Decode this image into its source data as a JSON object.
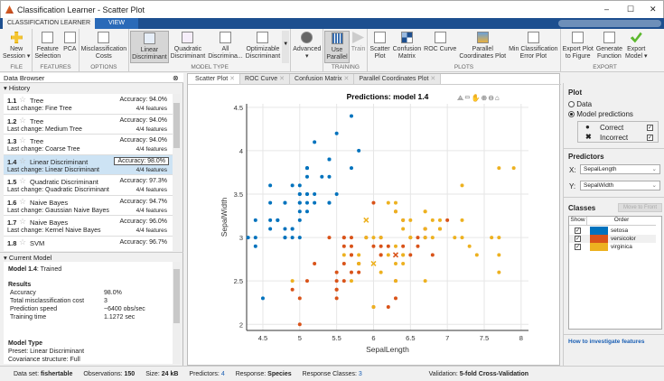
{
  "window": {
    "title": "Classification Learner - Scatter Plot",
    "min": "–",
    "max": "☐",
    "close": "✕"
  },
  "ribbon_tabs": [
    {
      "label": "CLASSIFICATION LEARNER"
    },
    {
      "label": "VIEW"
    }
  ],
  "toolstrip": {
    "buttons": [
      {
        "label": "New\nSession ▾"
      },
      {
        "label": "Feature\nSelection"
      },
      {
        "label": "PCA"
      },
      {
        "label": "Misclassification\nCosts"
      },
      {
        "label": "Linear\nDiscriminant"
      },
      {
        "label": "Quadratic\nDiscriminant"
      },
      {
        "label": "All\nDiscrimina..."
      },
      {
        "label": "Optimizable\nDiscriminant"
      },
      {
        "label": "Advanced\n▾"
      },
      {
        "label": "Use\nParallel"
      },
      {
        "label": "Train"
      },
      {
        "label": "Scatter\nPlot"
      },
      {
        "label": "Confusion\nMatrix"
      },
      {
        "label": "ROC Curve"
      },
      {
        "label": "Parallel\nCoordinates Plot"
      },
      {
        "label": "Min Classification\nError Plot"
      },
      {
        "label": "Export Plot\nto Figure"
      },
      {
        "label": "Generate\nFunction"
      },
      {
        "label": "Export\nModel ▾"
      }
    ],
    "sections": [
      "FILE",
      "FEATURES",
      "OPTIONS",
      "MODEL TYPE",
      "TRAINING",
      "PLOTS",
      "EXPORT"
    ]
  },
  "data_browser": {
    "title": "Data Browser",
    "history_label": "History",
    "current_model_label": "Current Model",
    "history": [
      {
        "id": "1.1",
        "name": "Tree",
        "accuracy": "Accuracy:  94.0%",
        "last_change": "Last change:  Fine Tree",
        "features": "4/4 features"
      },
      {
        "id": "1.2",
        "name": "Tree",
        "accuracy": "Accuracy:  94.0%",
        "last_change": "Last change:  Medium Tree",
        "features": "4/4 features"
      },
      {
        "id": "1.3",
        "name": "Tree",
        "accuracy": "Accuracy:  94.0%",
        "last_change": "Last change:  Coarse Tree",
        "features": "4/4 features"
      },
      {
        "id": "1.4",
        "name": "Linear Discriminant",
        "accuracy": "Accuracy:  98.0%",
        "last_change": "Last change:  Linear Discriminant",
        "features": "4/4 features"
      },
      {
        "id": "1.5",
        "name": "Quadratic Discriminant",
        "accuracy": "Accuracy:  97.3%",
        "last_change": "Last change:  Quadratic Discriminant",
        "features": "4/4 features"
      },
      {
        "id": "1.6",
        "name": "Naive Bayes",
        "accuracy": "Accuracy:  94.7%",
        "last_change": "Last change:  Gaussian Naive Bayes",
        "features": "4/4 features"
      },
      {
        "id": "1.7",
        "name": "Naive Bayes",
        "accuracy": "Accuracy:  96.0%",
        "last_change": "Last change:  Kernel Naive Bayes",
        "features": "4/4 features"
      },
      {
        "id": "1.8",
        "name": "SVM",
        "accuracy": "Accuracy:  96.7%",
        "last_change": "",
        "features": ""
      }
    ],
    "current_model": {
      "model": "Model 1.4",
      "status": ": Trained",
      "results_label": "Results",
      "results": [
        [
          "Accuracy",
          "98.0%"
        ],
        [
          "Total misclassification cost",
          "3"
        ],
        [
          "Prediction speed",
          "~6400 obs/sec"
        ],
        [
          "Training time",
          "1.1272 sec"
        ]
      ],
      "model_type_label": "Model Type",
      "preset": "Preset: Linear Discriminant",
      "covariance": "Covariance structure: Full"
    }
  },
  "doc_tabs": [
    {
      "label": "Scatter Plot"
    },
    {
      "label": "ROC Curve"
    },
    {
      "label": "Confusion Matrix"
    },
    {
      "label": "Parallel Coordinates Plot"
    }
  ],
  "right_panel": {
    "plot_label": "Plot",
    "data_option": "Data",
    "model_predictions_option": "Model predictions",
    "selected": "Model predictions",
    "correct_label": "Correct",
    "incorrect_label": "Incorrect",
    "correct_checked": true,
    "incorrect_checked": true,
    "predictors_label": "Predictors",
    "x_label": "X:",
    "x_value": "SepalLength",
    "y_label": "Y:",
    "y_value": "SepalWidth",
    "classes_label": "Classes",
    "move_to_front": "Move to Front",
    "show_header": "Show",
    "order_header": "Order",
    "classes": [
      {
        "name": "setosa",
        "color": "#0072bd",
        "checked": true
      },
      {
        "name": "versicolor",
        "color": "#d95319",
        "checked": true
      },
      {
        "name": "virginica",
        "color": "#edb120",
        "checked": true
      }
    ],
    "help_link": "How to investigate features"
  },
  "status": {
    "dataset_label": "Data set:",
    "dataset": "fishertable",
    "obs_label": "Observations:",
    "obs": "150",
    "size_label": "Size:",
    "size": "24 kB",
    "pred_label": "Predictors:",
    "pred": "4",
    "resp_label": "Response:",
    "resp": "Species",
    "classes_label": "Response Classes:",
    "classes": "3",
    "val_label": "Validation:",
    "val": "5-fold Cross-Validation"
  },
  "chart_data": {
    "type": "scatter",
    "title": "Predictions: model 1.4",
    "xlabel": "SepalLength",
    "ylabel": "SepalWidth",
    "xlim": [
      4.28,
      8.1
    ],
    "ylim": [
      1.93,
      4.54
    ],
    "xticks": [
      4.5,
      5,
      5.5,
      6,
      6.5,
      7,
      7.5,
      8
    ],
    "yticks": [
      2,
      2.5,
      3,
      3.5,
      4,
      4.5
    ],
    "grid": true,
    "series": [
      {
        "name": "setosa",
        "color": "#0072bd",
        "correct": [
          [
            5.1,
            3.5
          ],
          [
            4.9,
            3.0
          ],
          [
            4.7,
            3.2
          ],
          [
            4.6,
            3.1
          ],
          [
            5.0,
            3.6
          ],
          [
            5.4,
            3.9
          ],
          [
            4.6,
            3.4
          ],
          [
            5.0,
            3.4
          ],
          [
            4.4,
            2.9
          ],
          [
            4.9,
            3.1
          ],
          [
            5.4,
            3.7
          ],
          [
            4.8,
            3.4
          ],
          [
            4.8,
            3.0
          ],
          [
            4.3,
            3.0
          ],
          [
            5.8,
            4.0
          ],
          [
            5.7,
            4.4
          ],
          [
            5.4,
            3.9
          ],
          [
            5.1,
            3.5
          ],
          [
            5.7,
            3.8
          ],
          [
            5.1,
            3.8
          ],
          [
            5.4,
            3.4
          ],
          [
            5.1,
            3.7
          ],
          [
            4.6,
            3.6
          ],
          [
            5.1,
            3.3
          ],
          [
            4.8,
            3.4
          ],
          [
            5.0,
            3.0
          ],
          [
            5.0,
            3.4
          ],
          [
            5.2,
            3.5
          ],
          [
            5.2,
            3.4
          ],
          [
            4.7,
            3.2
          ],
          [
            4.8,
            3.1
          ],
          [
            5.4,
            3.4
          ],
          [
            5.2,
            4.1
          ],
          [
            5.5,
            4.2
          ],
          [
            4.9,
            3.1
          ],
          [
            5.0,
            3.2
          ],
          [
            5.5,
            3.5
          ],
          [
            4.9,
            3.6
          ],
          [
            4.4,
            3.0
          ],
          [
            5.1,
            3.4
          ],
          [
            5.0,
            3.5
          ],
          [
            4.5,
            2.3
          ],
          [
            4.4,
            3.2
          ],
          [
            5.0,
            3.5
          ],
          [
            5.1,
            3.8
          ],
          [
            4.8,
            3.0
          ],
          [
            5.1,
            3.8
          ],
          [
            4.6,
            3.2
          ],
          [
            5.3,
            3.7
          ],
          [
            5.0,
            3.3
          ]
        ],
        "incorrect": []
      },
      {
        "name": "versicolor",
        "color": "#d95319",
        "correct": [
          [
            7.0,
            3.2
          ],
          [
            6.4,
            3.2
          ],
          [
            6.9,
            3.1
          ],
          [
            5.5,
            2.3
          ],
          [
            6.5,
            2.8
          ],
          [
            5.7,
            2.8
          ],
          [
            6.3,
            3.3
          ],
          [
            4.9,
            2.4
          ],
          [
            6.6,
            2.9
          ],
          [
            5.2,
            2.7
          ],
          [
            5.0,
            2.0
          ],
          [
            5.9,
            3.0
          ],
          [
            6.0,
            2.2
          ],
          [
            6.1,
            2.9
          ],
          [
            5.6,
            2.9
          ],
          [
            6.7,
            3.1
          ],
          [
            5.6,
            3.0
          ],
          [
            5.8,
            2.7
          ],
          [
            6.2,
            2.2
          ],
          [
            5.6,
            2.5
          ],
          [
            6.1,
            2.8
          ],
          [
            6.3,
            2.5
          ],
          [
            6.1,
            2.8
          ],
          [
            6.4,
            2.9
          ],
          [
            6.6,
            3.0
          ],
          [
            6.8,
            2.8
          ],
          [
            6.7,
            3.0
          ],
          [
            6.0,
            2.9
          ],
          [
            5.7,
            2.6
          ],
          [
            5.5,
            2.4
          ],
          [
            5.5,
            2.4
          ],
          [
            5.8,
            2.7
          ],
          [
            5.4,
            3.0
          ],
          [
            6.0,
            3.4
          ],
          [
            6.7,
            3.1
          ],
          [
            6.3,
            2.3
          ],
          [
            5.6,
            3.0
          ],
          [
            5.5,
            2.5
          ],
          [
            5.5,
            2.6
          ],
          [
            6.1,
            3.0
          ],
          [
            5.8,
            2.6
          ],
          [
            5.0,
            2.3
          ],
          [
            5.6,
            2.7
          ],
          [
            5.7,
            3.0
          ],
          [
            5.7,
            2.9
          ],
          [
            6.2,
            2.9
          ],
          [
            5.1,
            2.5
          ],
          [
            5.7,
            2.8
          ]
        ],
        "incorrect": [
          [
            6.3,
            2.8
          ]
        ]
      },
      {
        "name": "virginica",
        "color": "#edb120",
        "correct": [
          [
            6.3,
            3.3
          ],
          [
            5.8,
            2.7
          ],
          [
            7.1,
            3.0
          ],
          [
            6.3,
            2.9
          ],
          [
            6.5,
            3.0
          ],
          [
            7.6,
            3.0
          ],
          [
            4.9,
            2.5
          ],
          [
            7.3,
            2.9
          ],
          [
            6.7,
            2.5
          ],
          [
            7.2,
            3.6
          ],
          [
            6.5,
            3.2
          ],
          [
            6.4,
            2.7
          ],
          [
            6.8,
            3.0
          ],
          [
            5.7,
            2.5
          ],
          [
            5.8,
            2.8
          ],
          [
            6.4,
            3.2
          ],
          [
            6.5,
            3.0
          ],
          [
            7.7,
            3.8
          ],
          [
            7.7,
            2.6
          ],
          [
            6.0,
            2.2
          ],
          [
            6.9,
            3.2
          ],
          [
            5.6,
            2.8
          ],
          [
            7.7,
            2.8
          ],
          [
            6.3,
            2.7
          ],
          [
            6.7,
            3.3
          ],
          [
            7.2,
            3.2
          ],
          [
            6.2,
            2.8
          ],
          [
            6.1,
            3.0
          ],
          [
            6.4,
            2.8
          ],
          [
            7.2,
            3.0
          ],
          [
            7.4,
            2.8
          ],
          [
            7.9,
            3.8
          ],
          [
            6.4,
            2.8
          ],
          [
            6.1,
            2.6
          ],
          [
            7.7,
            3.0
          ],
          [
            6.3,
            3.4
          ],
          [
            6.4,
            3.1
          ],
          [
            6.0,
            3.0
          ],
          [
            6.9,
            3.1
          ],
          [
            6.7,
            3.1
          ],
          [
            6.9,
            3.1
          ],
          [
            5.8,
            2.7
          ],
          [
            6.8,
            3.2
          ],
          [
            6.7,
            3.3
          ],
          [
            6.7,
            3.0
          ],
          [
            6.3,
            2.5
          ],
          [
            6.5,
            3.0
          ],
          [
            6.2,
            3.4
          ],
          [
            5.9,
            3.0
          ]
        ],
        "incorrect": [
          [
            5.9,
            3.2
          ],
          [
            6.0,
            2.7
          ]
        ]
      }
    ]
  }
}
